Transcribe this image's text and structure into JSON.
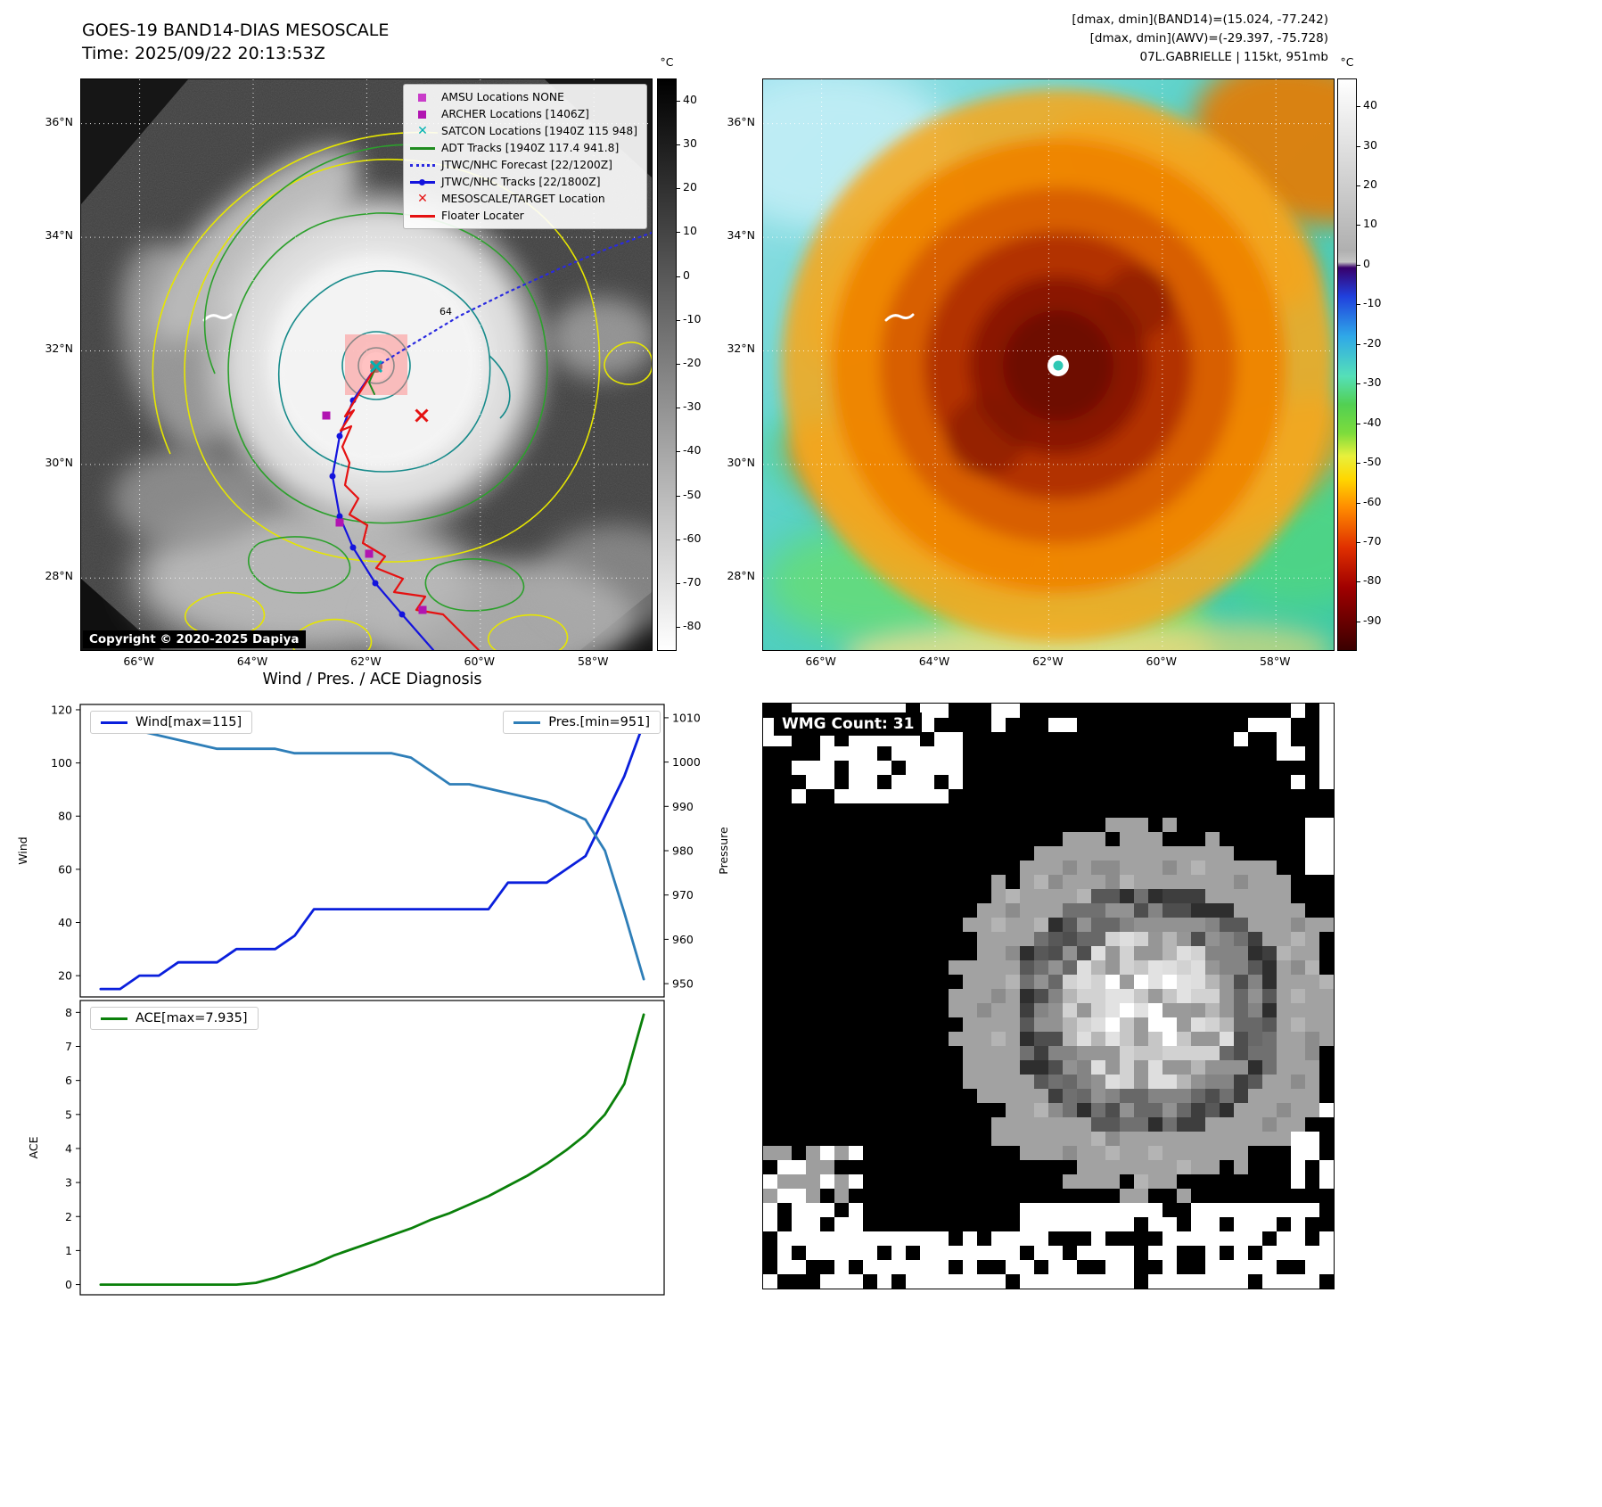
{
  "header": {
    "title": "GOES-19 BAND14-DIAS MESOSCALE",
    "time": "Time: 2025/09/22 20:13:53Z",
    "info_line1": "[dmax, dmin](BAND14)=(15.024, -77.242)",
    "info_line2": "[dmax, dmin](AWV)=(-29.397, -75.728)",
    "info_line3": "07L.GABRIELLE | 115kt, 951mb"
  },
  "map_left": {
    "copyright": "Copyright © 2020-2025 Dapiya",
    "lat_ticks": [
      "36°N",
      "34°N",
      "32°N",
      "30°N",
      "28°N"
    ],
    "lon_ticks": [
      "66°W",
      "64°W",
      "62°W",
      "60°W",
      "58°W"
    ],
    "colorbar": {
      "unit": "°C",
      "ticks": [
        "40",
        "30",
        "20",
        "10",
        "0",
        "-10",
        "-20",
        "-30",
        "-40",
        "-50",
        "-60",
        "-70",
        "-80"
      ],
      "gradient": [
        "#000000",
        "#ffffff"
      ]
    },
    "contour_label": "64",
    "legend": [
      {
        "label": "AMSU Locations NONE",
        "marker": "square",
        "color": "#c93cc9"
      },
      {
        "label": "ARCHER Locations [1406Z]",
        "marker": "square",
        "color": "#b114b1"
      },
      {
        "label": "SATCON Locations [1940Z 115 948]",
        "marker": "x",
        "color": "#00b2b2"
      },
      {
        "label": "ADT Tracks [1940Z 117.4 941.8]",
        "marker": "line",
        "color": "#1f8c1f"
      },
      {
        "label": "JTWC/NHC Forecast [22/1200Z]",
        "marker": "dotted",
        "color": "#2a2ae0"
      },
      {
        "label": "JTWC/NHC Tracks [22/1800Z]",
        "marker": "line-dot",
        "color": "#1414dd"
      },
      {
        "label": "MESOSCALE/TARGET Location",
        "marker": "x",
        "color": "#e51212"
      },
      {
        "label": "Floater Locater",
        "marker": "line",
        "color": "#e51212"
      }
    ],
    "overlays": {
      "forecast_track": [
        [
          331,
          322
        ],
        [
          375,
          295
        ],
        [
          425,
          265
        ],
        [
          480,
          238
        ],
        [
          535,
          213
        ],
        [
          590,
          190
        ],
        [
          640,
          172
        ]
      ],
      "best_track": [
        [
          331,
          322
        ],
        [
          305,
          360
        ],
        [
          290,
          400
        ],
        [
          282,
          445
        ],
        [
          290,
          490
        ],
        [
          305,
          525
        ],
        [
          330,
          565
        ],
        [
          360,
          600
        ],
        [
          395,
          640
        ]
      ],
      "floater_track": [
        [
          331,
          322
        ],
        [
          312,
          352
        ],
        [
          296,
          378
        ],
        [
          306,
          371
        ],
        [
          291,
          394
        ],
        [
          303,
          389
        ],
        [
          293,
          412
        ],
        [
          301,
          430
        ],
        [
          296,
          455
        ],
        [
          311,
          470
        ],
        [
          301,
          488
        ],
        [
          321,
          500
        ],
        [
          316,
          520
        ],
        [
          341,
          535
        ],
        [
          331,
          548
        ],
        [
          361,
          560
        ],
        [
          351,
          575
        ],
        [
          386,
          580
        ],
        [
          376,
          595
        ],
        [
          406,
          600
        ],
        [
          426,
          620
        ],
        [
          446,
          640
        ]
      ],
      "adt_track": [
        [
          331,
          322
        ],
        [
          323,
          340
        ],
        [
          329,
          353
        ]
      ],
      "archer_squares": [
        [
          275,
          377
        ],
        [
          290,
          497
        ],
        [
          323,
          532
        ],
        [
          383,
          595
        ]
      ],
      "satcon_x": [
        331,
        322
      ],
      "target_x": [
        382,
        377
      ],
      "mesoscale_rect": [
        296,
        286,
        70,
        68
      ]
    }
  },
  "map_right": {
    "lat_ticks": [
      "36°N",
      "34°N",
      "32°N",
      "30°N",
      "28°N"
    ],
    "lon_ticks": [
      "66°W",
      "64°W",
      "62°W",
      "60°W",
      "58°W"
    ],
    "colorbar": {
      "unit": "°C",
      "ticks": [
        "40",
        "30",
        "20",
        "10",
        "0",
        "-10",
        "-20",
        "-30",
        "-40",
        "-50",
        "-60",
        "-70",
        "-80",
        "-90"
      ],
      "gradient": [
        [
          0,
          "#ffffff"
        ],
        [
          30,
          "#b0b0b0"
        ],
        [
          32,
          "#c4c4c4"
        ],
        [
          33,
          "#38006b"
        ],
        [
          38,
          "#2040dd"
        ],
        [
          45,
          "#2fa8e8"
        ],
        [
          52,
          "#55e0b8"
        ],
        [
          57,
          "#52d052"
        ],
        [
          62,
          "#7ddc3c"
        ],
        [
          66,
          "#e8f03c"
        ],
        [
          70,
          "#ffd700"
        ],
        [
          75,
          "#ff8c00"
        ],
        [
          82,
          "#e03000"
        ],
        [
          89,
          "#a00000"
        ],
        [
          96,
          "#600000"
        ],
        [
          100,
          "#3a0000"
        ]
      ]
    }
  },
  "chart_data": [
    {
      "type": "line",
      "title": "Wind / Pres. / ACE Diagnosis",
      "x": [
        0,
        1,
        2,
        3,
        4,
        5,
        6,
        7,
        8,
        9,
        10,
        11,
        12,
        13,
        14,
        15,
        16,
        17,
        18,
        19,
        20,
        21,
        22,
        23,
        24,
        25,
        26,
        27,
        28
      ],
      "series": [
        {
          "name": "Wind[max=115]",
          "axis": "left",
          "color": "#0a1fdc",
          "values": [
            15,
            15,
            20,
            20,
            25,
            25,
            25,
            30,
            30,
            30,
            35,
            45,
            45,
            45,
            45,
            45,
            45,
            45,
            45,
            45,
            45,
            55,
            55,
            55,
            60,
            65,
            80,
            95,
            115
          ]
        },
        {
          "name": "Pres.[min=951]",
          "axis": "right",
          "color": "#2e7eb8",
          "values": [
            1009,
            1008,
            1007,
            1006,
            1005,
            1004,
            1003,
            1003,
            1003,
            1003,
            1002,
            1002,
            1002,
            1002,
            1002,
            1002,
            1001,
            998,
            995,
            995,
            994,
            993,
            992,
            991,
            989,
            987,
            980,
            966,
            951
          ]
        }
      ],
      "ylabel_left": "Wind",
      "ylabel_right": "Pressure",
      "ylim_left": [
        12,
        122
      ],
      "yticks_left": [
        20,
        40,
        60,
        80,
        100,
        120
      ],
      "ylim_right": [
        947,
        1013
      ],
      "yticks_right": [
        950,
        960,
        970,
        980,
        990,
        1000,
        1010
      ],
      "grid": false,
      "legend_positions": [
        "upper left",
        "upper right"
      ]
    },
    {
      "type": "line",
      "x": [
        0,
        1,
        2,
        3,
        4,
        5,
        6,
        7,
        8,
        9,
        10,
        11,
        12,
        13,
        14,
        15,
        16,
        17,
        18,
        19,
        20,
        21,
        22,
        23,
        24,
        25,
        26,
        27,
        28
      ],
      "series": [
        {
          "name": "ACE[max=7.935]",
          "axis": "left",
          "color": "#0a800a",
          "values": [
            0,
            0,
            0,
            0,
            0,
            0,
            0,
            0,
            0.05,
            0.2,
            0.4,
            0.6,
            0.85,
            1.05,
            1.25,
            1.45,
            1.65,
            1.9,
            2.1,
            2.35,
            2.6,
            2.9,
            3.2,
            3.55,
            3.95,
            4.4,
            5.0,
            5.9,
            7.935
          ]
        }
      ],
      "ylabel": "ACE",
      "ylim": [
        -0.3,
        8.35
      ],
      "yticks": [
        0,
        1,
        2,
        3,
        4,
        5,
        6,
        7,
        8
      ],
      "grid": false,
      "legend_positions": [
        "upper left"
      ]
    }
  ],
  "wmg": {
    "label": "WMG Count: 31"
  }
}
